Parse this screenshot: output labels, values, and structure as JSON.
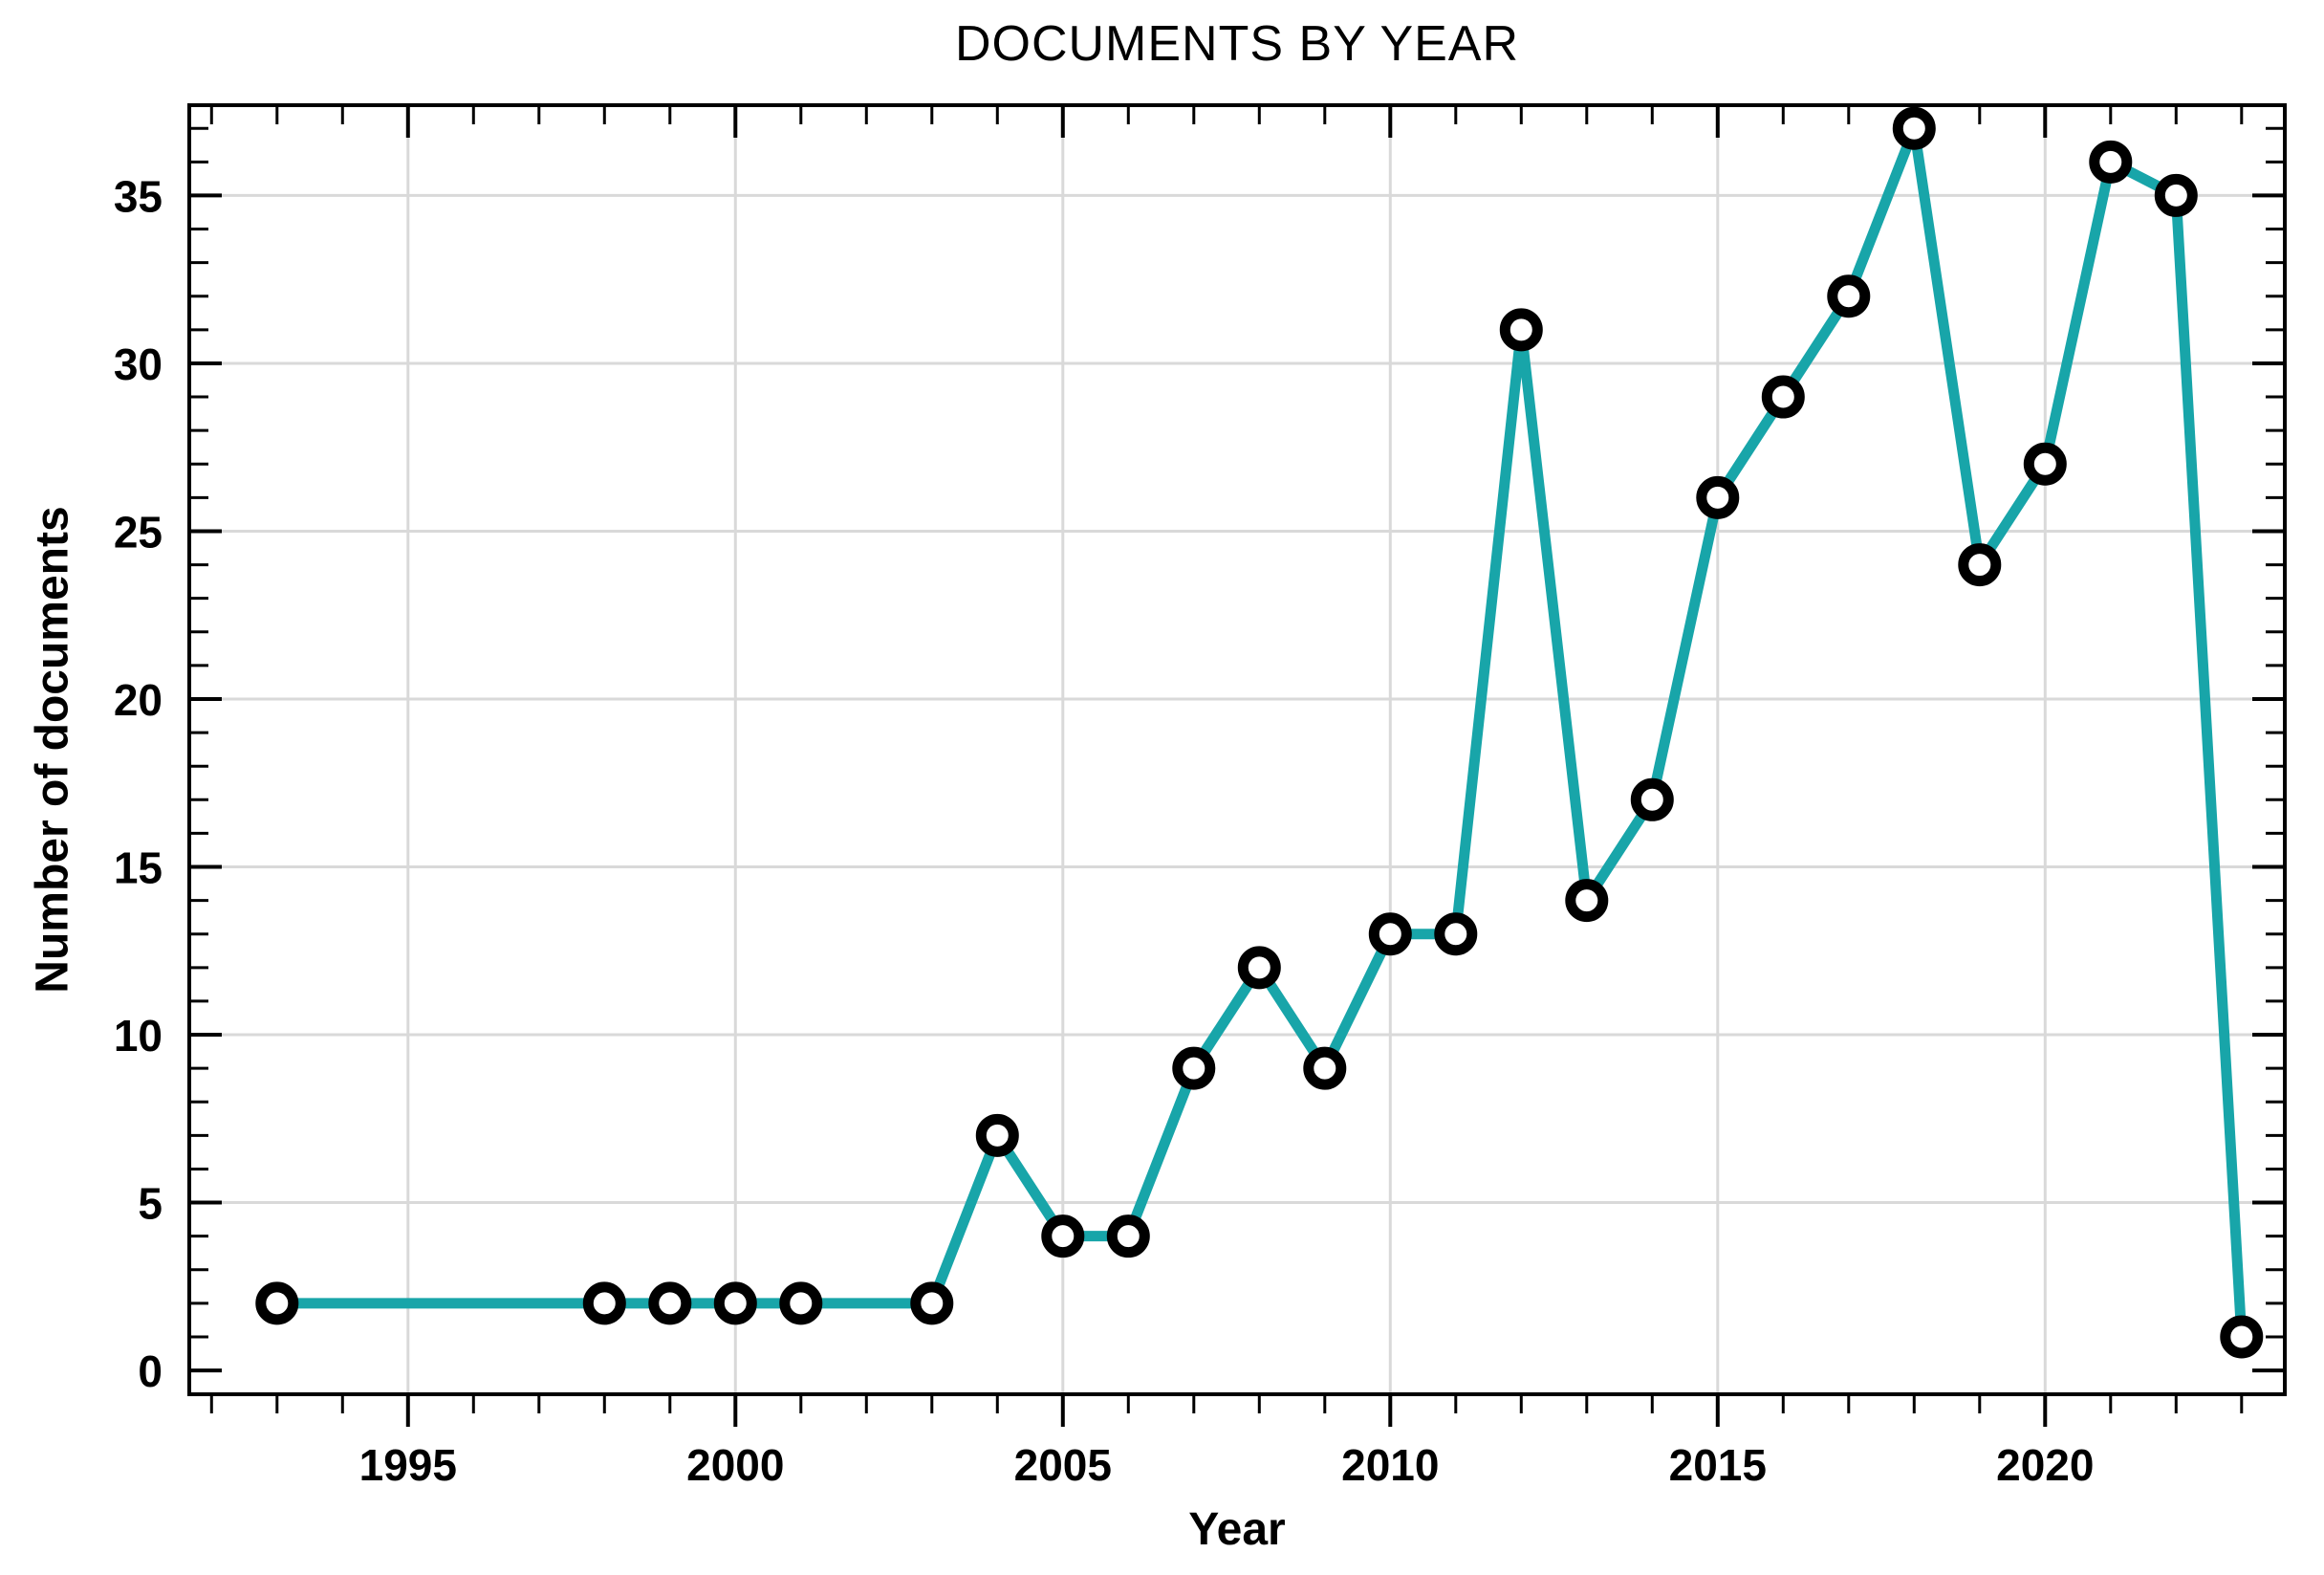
{
  "chart_data": {
    "type": "line",
    "title": "DOCUMENTS BY YEAR",
    "xlabel": "Year",
    "ylabel": "Number of documents",
    "x": [
      1993,
      1998,
      1999,
      2000,
      2001,
      2003,
      2004,
      2005,
      2006,
      2007,
      2008,
      2009,
      2010,
      2011,
      2012,
      2013,
      2014,
      2015,
      2016,
      2017,
      2018,
      2019,
      2020,
      2021,
      2022,
      2023
    ],
    "y": [
      2,
      2,
      2,
      2,
      2,
      2,
      7,
      4,
      4,
      9,
      12,
      9,
      13,
      13,
      31,
      14,
      17,
      26,
      29,
      32,
      37,
      24,
      27,
      36,
      35,
      1
    ],
    "series_name": "Number of documents",
    "x_major_ticks": [
      1995,
      2000,
      2005,
      2010,
      2015,
      2020
    ],
    "y_major_ticks": [
      0,
      5,
      10,
      15,
      20,
      25,
      30,
      35
    ],
    "x_minor_tick_step": 1,
    "y_minor_tick_step": 1,
    "x_range": [
      1991.66,
      2023.66
    ],
    "y_range": [
      -0.71,
      37.69
    ],
    "grid": true,
    "grid_on_major_only": true,
    "gridline_at_zero": false,
    "legend": "none",
    "colors": {
      "line": "#18A5A9",
      "marker_fill": "#FFFFFF",
      "marker_stroke": "#000000",
      "grid": "#D9D9D9",
      "axis_frame": "#000000",
      "text": "#000000",
      "background": "#FFFFFF"
    }
  }
}
